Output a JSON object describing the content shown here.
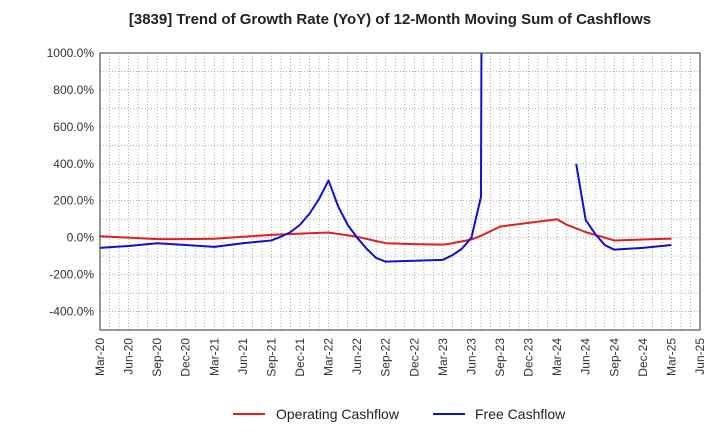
{
  "chart_data": {
    "type": "line",
    "title": "[3839]  Trend of Growth Rate (YoY) of 12-Month Moving Sum of Cashflows",
    "xlabel": "",
    "ylabel": "",
    "ylim": [
      -500,
      1000
    ],
    "y_ticks": [
      "1000.0%",
      "800.0%",
      "600.0%",
      "400.0%",
      "200.0%",
      "0.0%",
      "-200.0%",
      "-400.0%"
    ],
    "y_tick_values": [
      1000,
      800,
      600,
      400,
      200,
      0,
      -200,
      -400
    ],
    "x_ticks": [
      "Mar-20",
      "Jun-20",
      "Sep-20",
      "Dec-20",
      "Mar-21",
      "Jun-21",
      "Sep-21",
      "Dec-21",
      "Mar-22",
      "Jun-22",
      "Sep-22",
      "Dec-22",
      "Mar-23",
      "Jun-23",
      "Sep-23",
      "Dec-23",
      "Mar-24",
      "Jun-24",
      "Sep-24",
      "Dec-24",
      "Mar-25",
      "Jun-25"
    ],
    "x_tick_index": [
      0,
      3,
      6,
      9,
      12,
      15,
      18,
      21,
      24,
      27,
      30,
      33,
      36,
      39,
      42,
      45,
      48,
      51,
      54,
      57,
      60,
      63
    ],
    "x_range": [
      0,
      63
    ],
    "grid": true,
    "legend_position": "bottom",
    "series": [
      {
        "name": "Operating Cashflow",
        "color": "#e02020",
        "points": [
          [
            0,
            8
          ],
          [
            3,
            0
          ],
          [
            6,
            -8
          ],
          [
            9,
            -8
          ],
          [
            12,
            -6
          ],
          [
            15,
            5
          ],
          [
            18,
            15
          ],
          [
            21,
            22
          ],
          [
            24,
            28
          ],
          [
            27,
            5
          ],
          [
            30,
            -30
          ],
          [
            33,
            -35
          ],
          [
            36,
            -38
          ],
          [
            37,
            -30
          ],
          [
            39,
            -10
          ],
          [
            40,
            10
          ],
          [
            42,
            60
          ],
          [
            45,
            80
          ],
          [
            48,
            100
          ],
          [
            49,
            70
          ],
          [
            51,
            30
          ],
          [
            54,
            -15
          ],
          [
            57,
            -10
          ],
          [
            60,
            -5
          ]
        ]
      },
      {
        "name": "Free Cashflow",
        "color": "#1010d0",
        "points": [
          [
            0,
            -55
          ],
          [
            3,
            -45
          ],
          [
            6,
            -30
          ],
          [
            9,
            -40
          ],
          [
            12,
            -50
          ],
          [
            15,
            -30
          ],
          [
            18,
            -15
          ],
          [
            19,
            5
          ],
          [
            20,
            30
          ],
          [
            21,
            70
          ],
          [
            22,
            130
          ],
          [
            23,
            210
          ],
          [
            24,
            310
          ],
          [
            25,
            170
          ],
          [
            26,
            70
          ],
          [
            27,
            0
          ],
          [
            28,
            -60
          ],
          [
            29,
            -110
          ],
          [
            30,
            -130
          ],
          [
            33,
            -125
          ],
          [
            36,
            -120
          ],
          [
            37,
            -95
          ],
          [
            38,
            -60
          ],
          [
            39,
            0
          ],
          [
            40,
            220
          ],
          [
            40.05,
            1000
          ]
        ]
      },
      {
        "name": "Free Cashflow (segment 2)",
        "color": "#1010d0",
        "points": [
          [
            50,
            400
          ],
          [
            51,
            95
          ],
          [
            52,
            20
          ],
          [
            53,
            -40
          ],
          [
            54,
            -65
          ],
          [
            57,
            -55
          ],
          [
            60,
            -40
          ]
        ]
      }
    ]
  },
  "legend": {
    "items": [
      {
        "label": "Operating Cashflow",
        "color": "#e02020"
      },
      {
        "label": "Free Cashflow",
        "color": "#1010d0"
      }
    ]
  }
}
